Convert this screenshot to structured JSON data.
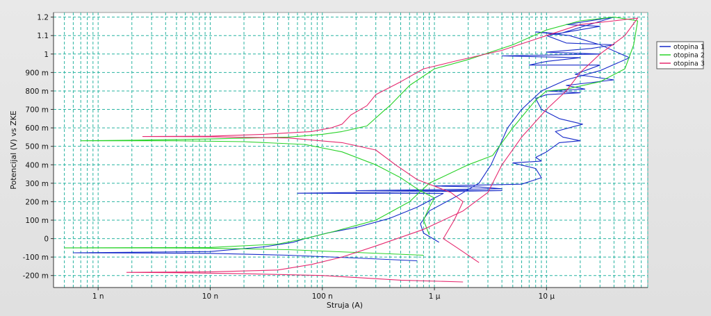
{
  "chart_data": {
    "type": "line",
    "title": "",
    "xlabel": "Struja (A)",
    "ylabel": "Potencijal (V) vs ZKE",
    "x_scale": "log",
    "xlim": [
      4e-10,
      8e-05
    ],
    "ylim": [
      -0.265,
      1.225
    ],
    "grid": true,
    "legend_position": "right",
    "x_ticks": [
      {
        "value": 1e-09,
        "label": "1 n"
      },
      {
        "value": 1e-08,
        "label": "10 n"
      },
      {
        "value": 1e-07,
        "label": "100 n"
      },
      {
        "value": 1e-06,
        "label": "1 µ"
      },
      {
        "value": 1e-05,
        "label": "10 µ"
      }
    ],
    "y_ticks": [
      {
        "value": -0.2,
        "label": "-200 m"
      },
      {
        "value": -0.1,
        "label": "-100 m"
      },
      {
        "value": 0,
        "label": "0"
      },
      {
        "value": 0.1,
        "label": "100 m"
      },
      {
        "value": 0.2,
        "label": "200 m"
      },
      {
        "value": 0.3,
        "label": "300 m"
      },
      {
        "value": 0.4,
        "label": "400 m"
      },
      {
        "value": 0.5,
        "label": "500 m"
      },
      {
        "value": 0.6,
        "label": "600 m"
      },
      {
        "value": 0.7,
        "label": "700 m"
      },
      {
        "value": 0.8,
        "label": "800 m"
      },
      {
        "value": 0.9,
        "label": "900 m"
      },
      {
        "value": 1.0,
        "label": "1"
      },
      {
        "value": 1.1,
        "label": "1.1"
      },
      {
        "value": 1.2,
        "label": "1.2"
      }
    ],
    "series": [
      {
        "name": "otopina 1",
        "color": "#1428c8",
        "points": [
          [
            7e-07,
            -0.12
          ],
          [
            2e-07,
            -0.105
          ],
          [
            5e-08,
            -0.09
          ],
          [
            1e-08,
            -0.08
          ],
          [
            3e-09,
            -0.078
          ],
          [
            6e-10,
            -0.077
          ],
          [
            1e-08,
            -0.07
          ],
          [
            3e-08,
            -0.045
          ],
          [
            5.5e-08,
            -0.02
          ],
          [
            7e-08,
            0.0
          ],
          [
            1.1e-07,
            0.03
          ],
          [
            2e-07,
            0.06
          ],
          [
            4e-07,
            0.11
          ],
          [
            7e-07,
            0.17
          ],
          [
            1e-06,
            0.22
          ],
          [
            1.2e-06,
            0.245
          ],
          [
            2e-07,
            0.245
          ],
          [
            6e-08,
            0.246
          ],
          [
            2e-07,
            0.25
          ],
          [
            1e-06,
            0.255
          ],
          [
            4e-06,
            0.26
          ],
          [
            2e-07,
            0.26
          ],
          [
            1e-06,
            0.265
          ],
          [
            4e-06,
            0.27
          ],
          [
            2.5e-06,
            0.28
          ],
          [
            1e-06,
            0.285
          ],
          [
            6e-06,
            0.295
          ],
          [
            9e-06,
            0.33
          ],
          [
            8e-06,
            0.38
          ],
          [
            5e-06,
            0.41
          ],
          [
            9e-06,
            0.42
          ],
          [
            8e-06,
            0.44
          ],
          [
            1e-05,
            0.47
          ],
          [
            1.3e-05,
            0.52
          ],
          [
            2e-05,
            0.53
          ],
          [
            1.4e-05,
            0.55
          ],
          [
            1.2e-05,
            0.58
          ],
          [
            2.1e-05,
            0.62
          ],
          [
            1.3e-05,
            0.65
          ],
          [
            9e-06,
            0.7
          ],
          [
            8e-06,
            0.76
          ],
          [
            1e-05,
            0.78
          ],
          [
            2e-05,
            0.79
          ],
          [
            1e-05,
            0.8
          ],
          [
            2.2e-05,
            0.81
          ],
          [
            1.5e-05,
            0.83
          ],
          [
            4e-05,
            0.86
          ],
          [
            1.8e-05,
            0.89
          ],
          [
            3e-05,
            0.94
          ],
          [
            7e-06,
            0.94
          ],
          [
            1e-05,
            0.96
          ],
          [
            2e-05,
            0.98
          ],
          [
            4e-06,
            0.99
          ],
          [
            3e-05,
            1.0
          ],
          [
            1e-05,
            1.01
          ],
          [
            2.5e-05,
            1.03
          ],
          [
            4e-05,
            1.05
          ],
          [
            1.5e-05,
            1.06
          ],
          [
            1e-05,
            1.1
          ],
          [
            3e-05,
            1.15
          ],
          [
            1.5e-05,
            1.16
          ],
          [
            4e-05,
            1.2
          ],
          [
            1.3e-05,
            1.11
          ],
          [
            8e-06,
            1.12
          ],
          [
            1.6e-05,
            1.1
          ],
          [
            3e-05,
            1.05
          ],
          [
            5.5e-05,
            0.98
          ],
          [
            3e-05,
            0.91
          ],
          [
            1.5e-05,
            0.86
          ],
          [
            9e-06,
            0.8
          ],
          [
            6e-06,
            0.7
          ],
          [
            4.5e-06,
            0.6
          ],
          [
            3.8e-06,
            0.5
          ],
          [
            3.2e-06,
            0.4
          ],
          [
            2.5e-06,
            0.3
          ],
          [
            1.7e-06,
            0.24
          ],
          [
            9e-07,
            0.15
          ],
          [
            7.5e-07,
            0.08
          ],
          [
            8e-07,
            0.03
          ],
          [
            1.1e-06,
            -0.02
          ]
        ]
      },
      {
        "name": "otopina 2",
        "color": "#28d228",
        "points": [
          [
            8e-07,
            -0.09
          ],
          [
            2e-07,
            -0.075
          ],
          [
            5e-08,
            -0.06
          ],
          [
            1e-08,
            -0.052
          ],
          [
            3e-09,
            -0.05
          ],
          [
            5e-10,
            -0.05
          ],
          [
            1e-08,
            -0.048
          ],
          [
            4e-08,
            -0.03
          ],
          [
            7e-08,
            0.0
          ],
          [
            1.3e-07,
            0.04
          ],
          [
            3e-07,
            0.1
          ],
          [
            6e-07,
            0.2
          ],
          [
            9e-07,
            0.3
          ],
          [
            2e-06,
            0.4
          ],
          [
            3.3e-06,
            0.45
          ],
          [
            5e-06,
            0.6
          ],
          [
            8e-06,
            0.75
          ],
          [
            1e-05,
            0.8
          ],
          [
            1.5e-05,
            0.81
          ],
          [
            3e-05,
            0.85
          ],
          [
            5e-05,
            0.92
          ],
          [
            6e-05,
            1.05
          ],
          [
            6.5e-05,
            1.18
          ],
          [
            4e-05,
            1.2
          ],
          [
            2e-05,
            1.18
          ],
          [
            1e-05,
            1.13
          ],
          [
            5e-06,
            1.05
          ],
          [
            2e-06,
            0.97
          ],
          [
            1e-06,
            0.92
          ],
          [
            6e-07,
            0.83
          ],
          [
            4e-07,
            0.72
          ],
          [
            3.5e-07,
            0.69
          ],
          [
            2.5e-07,
            0.61
          ],
          [
            1.5e-07,
            0.58
          ],
          [
            1e-07,
            0.565
          ],
          [
            5e-08,
            0.55
          ],
          [
            1e-08,
            0.54
          ],
          [
            2e-09,
            0.533
          ],
          [
            7e-10,
            0.53
          ],
          [
            5e-09,
            0.53
          ],
          [
            2e-08,
            0.525
          ],
          [
            7e-08,
            0.51
          ],
          [
            1.5e-07,
            0.47
          ],
          [
            3e-07,
            0.4
          ],
          [
            5e-07,
            0.33
          ],
          [
            7e-07,
            0.27
          ],
          [
            8e-07,
            0.25
          ],
          [
            1e-06,
            0.22
          ],
          [
            9e-07,
            0.17
          ],
          [
            8e-07,
            0.1
          ],
          [
            9e-07,
            0.02
          ]
        ]
      },
      {
        "name": "otopina 3",
        "color": "#e6286e",
        "points": [
          [
            1.8e-06,
            -0.235
          ],
          [
            5e-07,
            -0.225
          ],
          [
            1e-07,
            -0.2
          ],
          [
            2e-08,
            -0.19
          ],
          [
            5e-09,
            -0.185
          ],
          [
            1.8e-09,
            -0.183
          ],
          [
            1e-08,
            -0.18
          ],
          [
            4e-08,
            -0.17
          ],
          [
            8e-08,
            -0.14
          ],
          [
            1.5e-07,
            -0.1
          ],
          [
            3e-07,
            -0.04
          ],
          [
            8e-07,
            0.05
          ],
          [
            1.8e-06,
            0.15
          ],
          [
            3e-06,
            0.25
          ],
          [
            4e-06,
            0.4
          ],
          [
            6e-06,
            0.55
          ],
          [
            1e-05,
            0.7
          ],
          [
            1.5e-05,
            0.8
          ],
          [
            2e-05,
            0.9
          ],
          [
            3e-05,
            1.0
          ],
          [
            5e-05,
            1.1
          ],
          [
            6.5e-05,
            1.195
          ],
          [
            4e-05,
            1.18
          ],
          [
            2e-05,
            1.16
          ],
          [
            1e-05,
            1.1
          ],
          [
            4e-06,
            1.02
          ],
          [
            1.5e-06,
            0.96
          ],
          [
            8e-07,
            0.92
          ],
          [
            5e-07,
            0.85
          ],
          [
            3e-07,
            0.78
          ],
          [
            2.5e-07,
            0.72
          ],
          [
            1.8e-07,
            0.67
          ],
          [
            1.5e-07,
            0.62
          ],
          [
            1.2e-07,
            0.6
          ],
          [
            8e-08,
            0.58
          ],
          [
            3e-08,
            0.565
          ],
          [
            1e-08,
            0.555
          ],
          [
            2.5e-09,
            0.553
          ],
          [
            1e-08,
            0.552
          ],
          [
            5e-08,
            0.545
          ],
          [
            1.5e-07,
            0.52
          ],
          [
            3e-07,
            0.48
          ],
          [
            4.5e-07,
            0.4
          ],
          [
            7e-07,
            0.32
          ],
          [
            1.4e-06,
            0.25
          ],
          [
            1.8e-06,
            0.2
          ],
          [
            1.5e-06,
            0.1
          ],
          [
            1.2e-06,
            0.0
          ],
          [
            1.6e-06,
            -0.05
          ],
          [
            2.5e-06,
            -0.13
          ]
        ]
      }
    ]
  }
}
